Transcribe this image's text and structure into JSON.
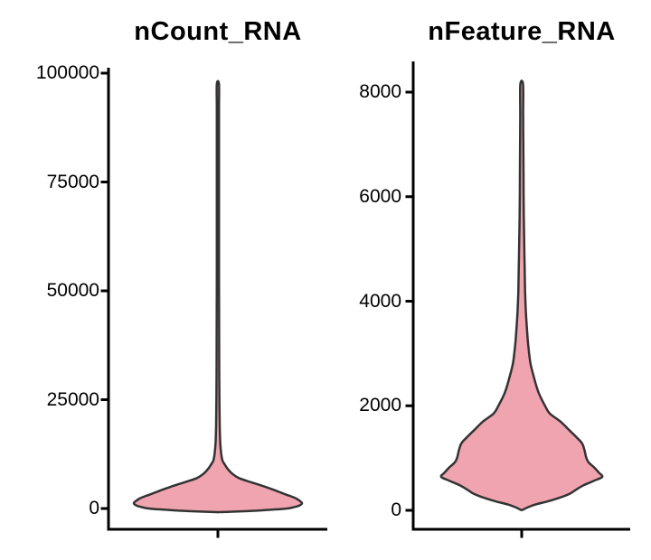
{
  "figure": {
    "background": "#FFFFFF",
    "violin_fill": "#F0A4AF",
    "violin_outline": "#333333",
    "axis_color": "#000000",
    "text_color": "#000000"
  },
  "chart_data": [
    {
      "type": "violin",
      "title": "nCount_RNA",
      "xlabel": "",
      "ylabel": "",
      "categories": [
        ""
      ],
      "ylim": [
        0,
        100000
      ],
      "yticks": [
        0,
        25000,
        50000,
        75000,
        100000
      ],
      "ytick_labels": [
        "0",
        "25000",
        "50000",
        "75000",
        "100000"
      ],
      "grid": false,
      "legend": "none",
      "observed_max": 97500,
      "observed_min": 0,
      "mode_value": 1250,
      "density_profile": [
        [
          97500,
          0.012
        ],
        [
          92000,
          0.012
        ],
        [
          85000,
          0.012
        ],
        [
          78000,
          0.012
        ],
        [
          70000,
          0.013
        ],
        [
          62000,
          0.013
        ],
        [
          54000,
          0.013
        ],
        [
          46000,
          0.014
        ],
        [
          38000,
          0.015
        ],
        [
          30000,
          0.016
        ],
        [
          24000,
          0.018
        ],
        [
          19000,
          0.022
        ],
        [
          15000,
          0.028
        ],
        [
          12500,
          0.04
        ],
        [
          11000,
          0.055
        ],
        [
          10000,
          0.085
        ],
        [
          9000,
          0.12
        ],
        [
          8000,
          0.17
        ],
        [
          7000,
          0.25
        ],
        [
          6000,
          0.4
        ],
        [
          5200,
          0.53
        ],
        [
          4400,
          0.65
        ],
        [
          3800,
          0.73
        ],
        [
          3200,
          0.81
        ],
        [
          2800,
          0.87
        ],
        [
          2300,
          0.93
        ],
        [
          1800,
          0.97
        ],
        [
          1250,
          1.0
        ],
        [
          700,
          0.97
        ],
        [
          300,
          0.9
        ],
        [
          0,
          0.82
        ],
        [
          -300,
          0.62
        ],
        [
          -600,
          0.35
        ],
        [
          -830,
          0.0
        ]
      ]
    },
    {
      "type": "violin",
      "title": "nFeature_RNA",
      "xlabel": "",
      "ylabel": "",
      "categories": [
        ""
      ],
      "ylim": [
        0,
        8000
      ],
      "yticks": [
        0,
        2000,
        4000,
        6000,
        8000
      ],
      "ytick_labels": [
        "0",
        "2000",
        "4000",
        "6000",
        "8000"
      ],
      "grid": false,
      "legend": "none",
      "observed_max": 8150,
      "observed_min": 20,
      "mode_value": 640,
      "density_profile": [
        [
          8150,
          0.017
        ],
        [
          7600,
          0.018
        ],
        [
          7000,
          0.02
        ],
        [
          6400,
          0.022
        ],
        [
          5800,
          0.025
        ],
        [
          5200,
          0.03
        ],
        [
          4700,
          0.036
        ],
        [
          4200,
          0.042
        ],
        [
          3800,
          0.052
        ],
        [
          3400,
          0.068
        ],
        [
          3100,
          0.085
        ],
        [
          2800,
          0.11
        ],
        [
          2500,
          0.16
        ],
        [
          2250,
          0.21
        ],
        [
          2000,
          0.29
        ],
        [
          1850,
          0.35
        ],
        [
          1700,
          0.48
        ],
        [
          1550,
          0.58
        ],
        [
          1400,
          0.68
        ],
        [
          1280,
          0.75
        ],
        [
          1150,
          0.78
        ],
        [
          1020,
          0.8
        ],
        [
          920,
          0.83
        ],
        [
          820,
          0.9
        ],
        [
          720,
          0.96
        ],
        [
          640,
          1.0
        ],
        [
          560,
          0.89
        ],
        [
          480,
          0.77
        ],
        [
          400,
          0.68
        ],
        [
          320,
          0.6
        ],
        [
          240,
          0.47
        ],
        [
          170,
          0.32
        ],
        [
          110,
          0.17
        ],
        [
          60,
          0.08
        ],
        [
          25,
          0.03
        ],
        [
          10,
          0.0
        ]
      ]
    }
  ]
}
